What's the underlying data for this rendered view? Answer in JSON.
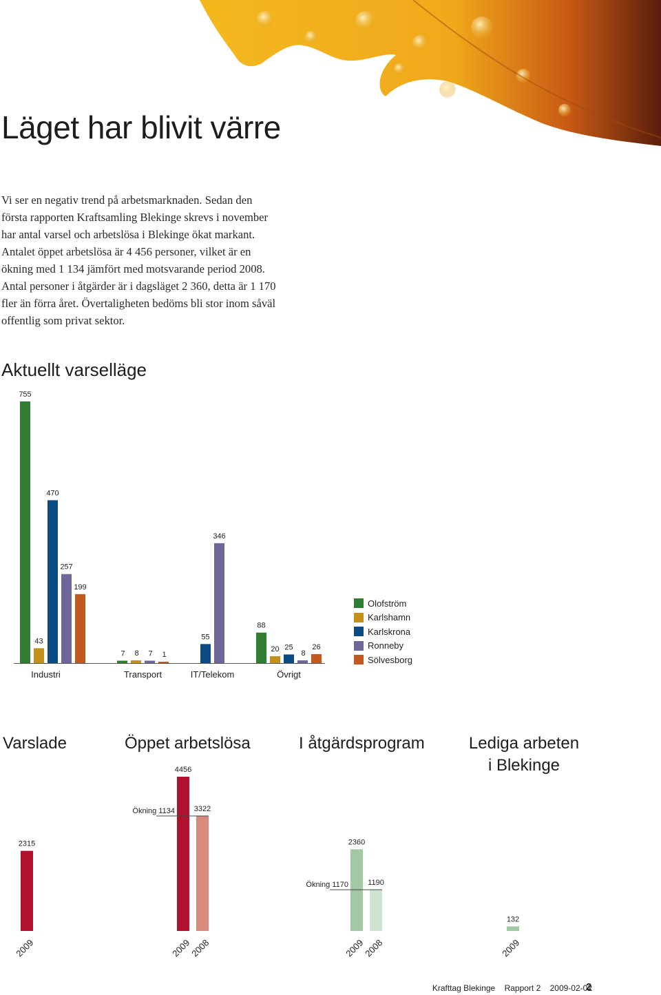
{
  "page": {
    "title": "Läget har blivit värre",
    "intro": "Vi ser en negativ trend på arbetsmarknaden. Sedan den första rapporten Kraftsamling Blekinge skrevs i november har antal varsel och arbetslösa i Blekinge ökat markant. Antalet öppet arbetslösa är 4 456 personer, vilket är en ökning med 1 134 jämfört med motsvarande period 2008. Antal personer i åtgärder är i dagsläget 2 360, detta är 1 170 fler än förra året. Övertaligheten bedöms bli stor inom såväl offentlig som privat sektor."
  },
  "section": {
    "title": "Aktuellt varselläge"
  },
  "chart_data": [
    {
      "type": "bar",
      "title": "Aktuellt varselläge",
      "categories": [
        "Industri",
        "Transport",
        "IT/Telekom",
        "Övrigt"
      ],
      "series": [
        {
          "name": "Olofström",
          "color": "#2e7d32",
          "values": [
            755,
            7,
            null,
            88
          ]
        },
        {
          "name": "Karlshamn",
          "color": "#c3901a",
          "values": [
            43,
            8,
            null,
            20
          ]
        },
        {
          "name": "Karlskrona",
          "color": "#0b4a82",
          "values": [
            470,
            null,
            55,
            25
          ]
        },
        {
          "name": "Ronneby",
          "color": "#6e689a",
          "values": [
            257,
            7,
            346,
            8
          ]
        },
        {
          "name": "Sölvesborg",
          "color": "#c05a1e",
          "values": [
            199,
            1,
            null,
            26
          ]
        }
      ],
      "legend": "right"
    },
    {
      "type": "bar",
      "groups": [
        {
          "title": "Varslade",
          "bars": [
            {
              "year": "2009",
              "value": 2315,
              "color": "#b0122e"
            }
          ]
        },
        {
          "title": "Öppet arbetslösa",
          "increase_label": "Ökning",
          "increase_value": 1134,
          "bars": [
            {
              "year": "2009",
              "value": 4456,
              "color": "#b0122e"
            },
            {
              "year": "2008",
              "value": 3322,
              "color": "#d98a7c"
            }
          ]
        },
        {
          "title": "I åtgärdsprogram",
          "increase_label": "Ökning",
          "increase_value": 1170,
          "bars": [
            {
              "year": "2009",
              "value": 2360,
              "color": "#a3c8a6"
            },
            {
              "year": "2008",
              "value": 1190,
              "color": "#cfe3d1"
            }
          ]
        },
        {
          "title": "Lediga arbeten i Blekinge",
          "title_line1": "Lediga arbeten",
          "title_line2": "i Blekinge",
          "bars": [
            {
              "year": "2009",
              "value": 132,
              "color": "#a3c8a6"
            }
          ]
        }
      ]
    }
  ],
  "footer": {
    "org": "Krafttag Blekinge",
    "report": "Rapport 2",
    "date": "2009-02-02",
    "page": "2"
  }
}
